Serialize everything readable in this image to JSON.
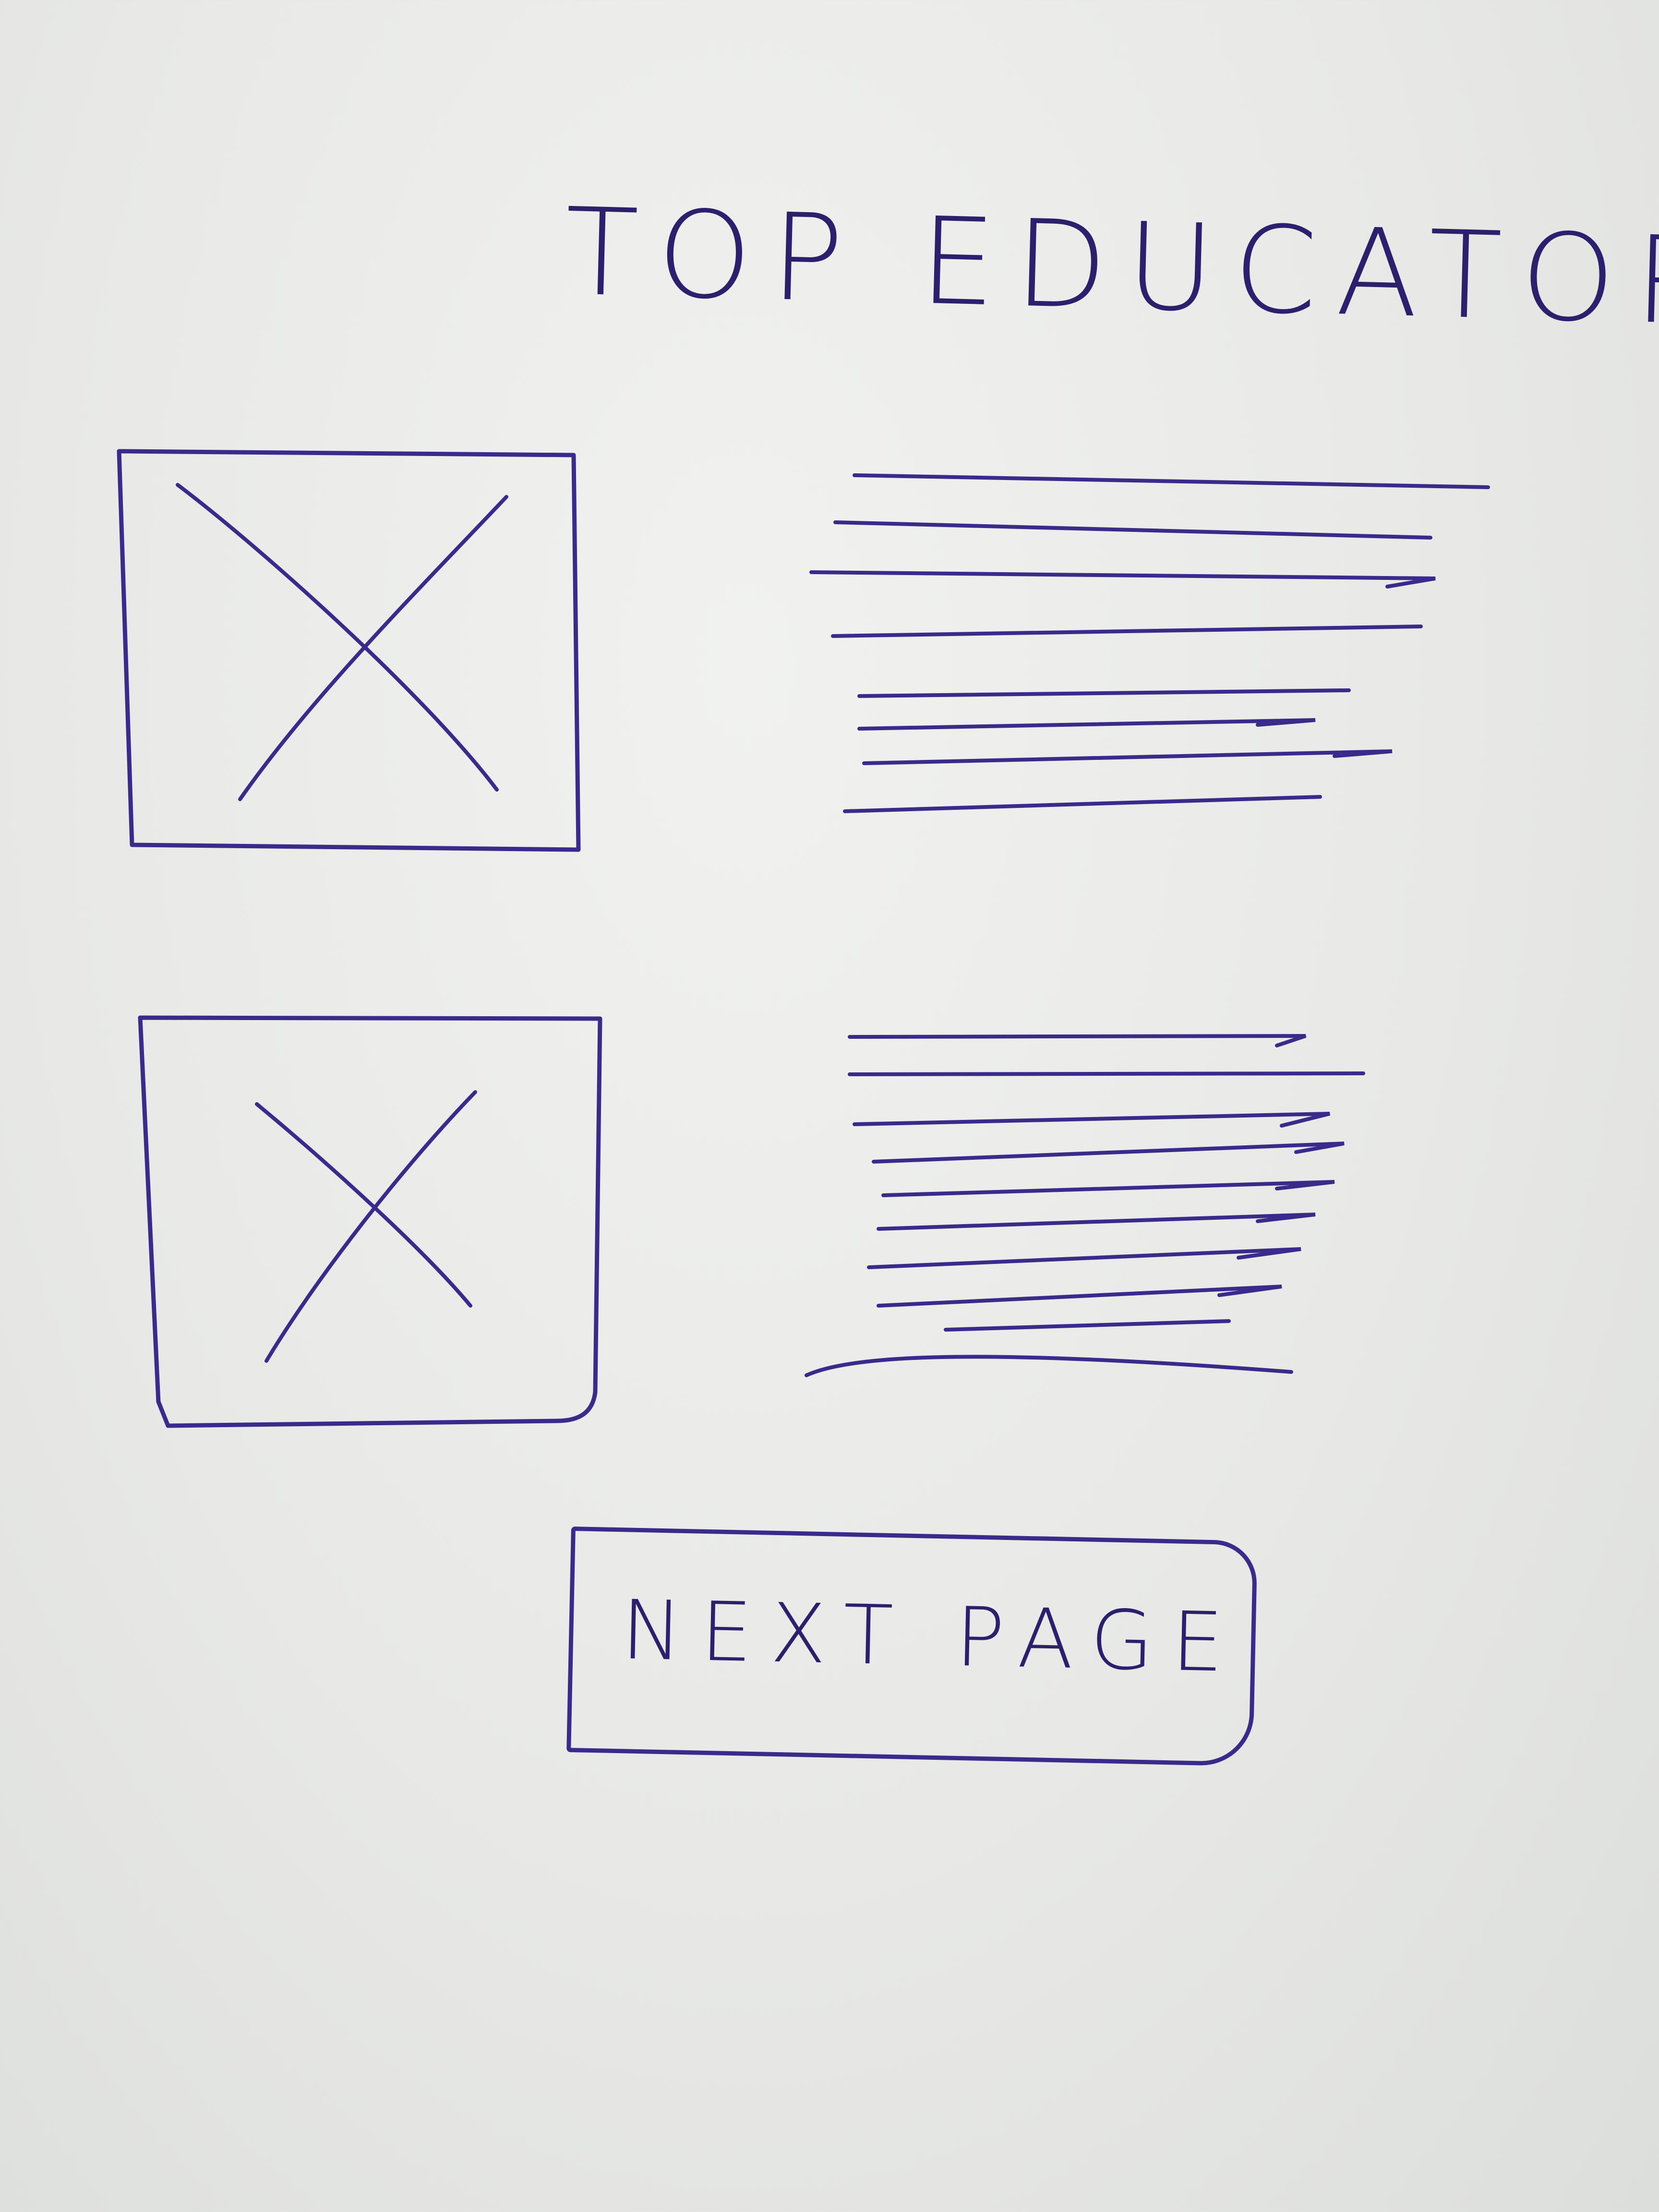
{
  "page": {
    "title": "TOP EDUCATORS",
    "ink_color": "#3a2a8c",
    "paper_color": "#ebecea"
  },
  "educators": [
    {
      "image_icon": "image-placeholder-icon",
      "text_icon": "text-placeholder-lines"
    },
    {
      "image_icon": "image-placeholder-icon",
      "text_icon": "text-placeholder-lines"
    }
  ],
  "pagination": {
    "next_label": "NEXT PAGE"
  }
}
